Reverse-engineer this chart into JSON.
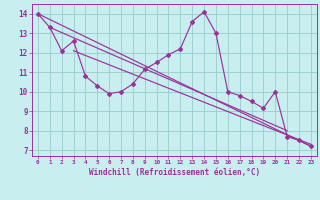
{
  "xlabel": "Windchill (Refroidissement éolien,°C)",
  "hours": [
    0,
    1,
    2,
    3,
    4,
    5,
    6,
    7,
    8,
    9,
    10,
    11,
    12,
    13,
    14,
    15,
    16,
    17,
    18,
    19,
    20,
    21,
    22,
    23
  ],
  "main_line": [
    14.0,
    13.3,
    12.1,
    12.6,
    10.8,
    10.3,
    9.9,
    10.0,
    10.4,
    11.15,
    11.5,
    11.9,
    12.2,
    13.6,
    14.1,
    13.0,
    10.0,
    9.8,
    9.5,
    9.15,
    10.0,
    7.7,
    7.5,
    7.2
  ],
  "trend1_x": [
    0,
    23
  ],
  "trend1_y": [
    14.0,
    7.2
  ],
  "trend2_x": [
    1,
    21
  ],
  "trend2_y": [
    13.3,
    8.0
  ],
  "trend3_x": [
    3,
    23
  ],
  "trend3_y": [
    12.1,
    7.3
  ],
  "line_color": "#993399",
  "bg_color": "#c8eef0",
  "grid_color": "#99cccc",
  "ylim": [
    6.7,
    14.5
  ],
  "xlim": [
    -0.5,
    23.5
  ],
  "yticks": [
    7,
    8,
    9,
    10,
    11,
    12,
    13,
    14
  ],
  "xticks": [
    0,
    1,
    2,
    3,
    4,
    5,
    6,
    7,
    8,
    9,
    10,
    11,
    12,
    13,
    14,
    15,
    16,
    17,
    18,
    19,
    20,
    21,
    22,
    23
  ],
  "xlabel_fontsize": 5.5,
  "xtick_fontsize": 4.3,
  "ytick_fontsize": 5.5
}
